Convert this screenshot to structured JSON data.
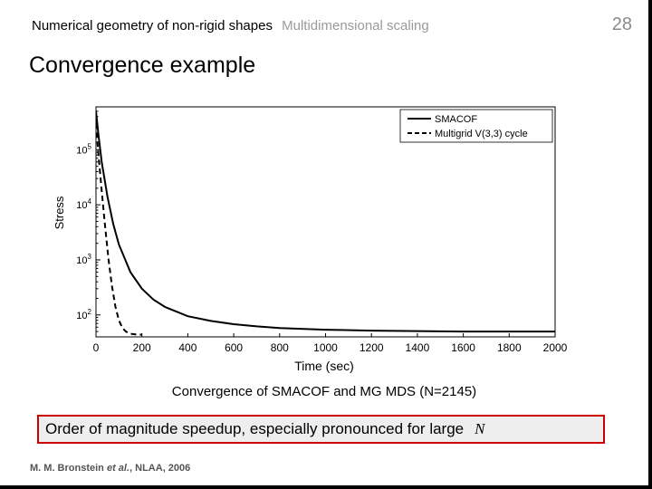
{
  "header": {
    "course": "Numerical geometry of non-rigid shapes",
    "topic": "Multidimensional scaling",
    "page_number": "28"
  },
  "title": "Convergence example",
  "chart_data": {
    "type": "line",
    "xlabel": "Time (sec)",
    "ylabel": "Stress",
    "xlim": [
      0,
      2000
    ],
    "ylim": [
      40,
      600000
    ],
    "yscale": "log",
    "xticks": [
      0,
      200,
      400,
      600,
      800,
      1000,
      1200,
      1400,
      1600,
      1800,
      2000
    ],
    "yticks": [
      100,
      1000,
      10000,
      100000
    ],
    "ytick_labels": [
      {
        "base": "10",
        "exp": "2"
      },
      {
        "base": "10",
        "exp": "3"
      },
      {
        "base": "10",
        "exp": "4"
      },
      {
        "base": "10",
        "exp": "5"
      }
    ],
    "legend_position": "top-right",
    "grid": false,
    "series": [
      {
        "name": "SMACOF",
        "style": "solid",
        "x": [
          0,
          10,
          25,
          50,
          75,
          100,
          150,
          200,
          250,
          300,
          400,
          500,
          600,
          700,
          800,
          1000,
          1200,
          1400,
          1600,
          1800,
          2000
        ],
        "y": [
          500000,
          200000,
          60000,
          14000,
          4500,
          1900,
          600,
          300,
          190,
          140,
          95,
          78,
          68,
          62,
          58,
          54,
          52,
          51,
          50,
          50,
          50
        ]
      },
      {
        "name": "Multigrid V(3,3) cycle",
        "style": "dashed",
        "x": [
          0,
          10,
          25,
          40,
          55,
          70,
          85,
          100,
          115,
          130,
          145,
          160,
          180,
          200
        ],
        "y": [
          300000,
          90000,
          18000,
          4000,
          1000,
          330,
          140,
          80,
          58,
          50,
          46,
          45,
          44,
          44
        ]
      }
    ]
  },
  "caption": "Convergence of SMACOF and MG MDS (N=2145)",
  "highlight": {
    "text": "Order of magnitude speedup, especially pronounced for large",
    "variable": "N"
  },
  "citation": {
    "authors": "M. M. Bronstein",
    "etal": "et al.",
    "venue": ", NLAA, 2006"
  }
}
